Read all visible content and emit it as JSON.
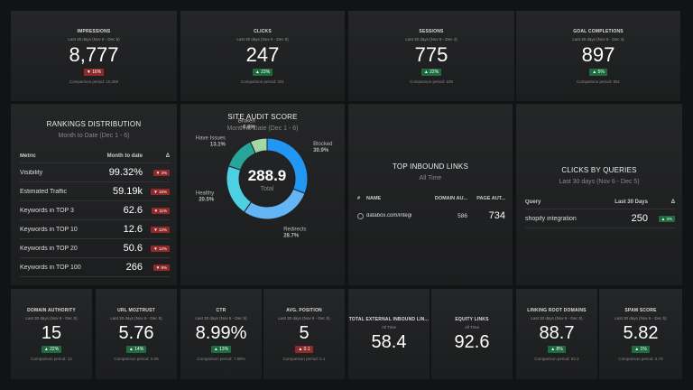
{
  "top_tiles": [
    {
      "title": "IMPRESSIONS",
      "period": "Last 30 days (Nov 6 - Dec 5)",
      "value": "8,777",
      "change": {
        "text": "▼ 16%",
        "color": "#8e2a2a"
      },
      "comparison": "Comparison period: 10,465"
    },
    {
      "title": "CLICKS",
      "period": "Last 30 days (Nov 6 - Dec 5)",
      "value": "247",
      "change": {
        "text": "▲ 23%",
        "color": "#1e6b3f"
      },
      "comparison": "Comparison period: 201"
    },
    {
      "title": "SESSIONS",
      "period": "Last 30 days (Nov 6 - Dec 4)",
      "value": "775",
      "change": {
        "text": "▲ 22%",
        "color": "#1e6b3f"
      },
      "comparison": "Comparison period: 635"
    },
    {
      "title": "GOAL COMPLETIONS",
      "period": "Last 30 days (Nov 6 - Dec 4)",
      "value": "897",
      "change": {
        "text": "▲ 5%",
        "color": "#1e6b3f"
      },
      "comparison": "Comparison period: 851"
    }
  ],
  "rankings": {
    "title": "RANKINGS DISTRIBUTION",
    "period": "Month to Date (Dec 1 - 6)",
    "columns": [
      "Metric",
      "Month to date",
      "Δ"
    ],
    "rows": [
      {
        "name": "Visibility",
        "value": "99.32%",
        "change": {
          "text": "▼ 3%",
          "color": "#8e2a2a"
        }
      },
      {
        "name": "Estimated Traffic",
        "value": "59.19k",
        "change": {
          "text": "▼ 16%",
          "color": "#8e2a2a"
        }
      },
      {
        "name": "Keywords in TOP 3",
        "value": "62.6",
        "change": {
          "text": "▼ 11%",
          "color": "#8e2a2a"
        }
      },
      {
        "name": "Keywords in TOP 10",
        "value": "12.6",
        "change": {
          "text": "▼ 12%",
          "color": "#8e2a2a"
        }
      },
      {
        "name": "Keywords in TOP 20",
        "value": "50.6",
        "change": {
          "text": "▼ 12%",
          "color": "#8e2a2a"
        }
      },
      {
        "name": "Keywords in TOP 100",
        "value": "266",
        "change": {
          "text": "▼ 9%",
          "color": "#8e2a2a"
        }
      }
    ]
  },
  "site_audit": {
    "title": "SITE AUDIT SCORE",
    "period": "Month to Date (Dec 1 - 6)",
    "total": "288.9",
    "total_label": "Total",
    "segments": [
      {
        "name": "Blocked",
        "value": 30.9,
        "label": "30.9%",
        "color": "#2196f3"
      },
      {
        "name": "Redirects",
        "value": 28.7,
        "label": "28.7%",
        "color": "#64b5f6"
      },
      {
        "name": "Healthy",
        "value": 20.5,
        "label": "20.5%",
        "color": "#4dd0e1"
      },
      {
        "name": "Have Issues",
        "value": 13.1,
        "label": "13.1%",
        "color": "#26a69a"
      },
      {
        "name": "Broken",
        "value": 6.8,
        "label": "6.8%",
        "color": "#a5d6a7"
      }
    ]
  },
  "inbound_links": {
    "title": "TOP INBOUND LINKS",
    "period": "All Time",
    "columns": [
      "#",
      "NAME",
      "DOMAIN AU...",
      "PAGE AUT..."
    ],
    "rows": [
      {
        "name": "databox.com/integrations",
        "domain_authority": 586,
        "page_authority": 734
      }
    ]
  },
  "clicks_by_queries": {
    "title": "CLICKS BY QUERIES",
    "period": "Last 30 days (Nov 6 - Dec 5)",
    "columns": [
      "Query",
      "Last 30 Days",
      "Δ"
    ],
    "rows": [
      {
        "name": "shopify integration",
        "value": "250",
        "change": {
          "text": "▲ 3%",
          "color": "#1e6b3f"
        }
      }
    ]
  },
  "bottom_tiles": [
    {
      "title": "DOMAIN AUTHORITY",
      "period": "Last 30 days (Nov 6 - Dec 5)",
      "value": "15",
      "change": {
        "text": "▲ 22%",
        "color": "#1e6b3f"
      },
      "comparison": "Comparison period: 12"
    },
    {
      "title": "URL MOZTRUST",
      "period": "Last 30 days (Nov 6 - Dec 5)",
      "value": "5.76",
      "change": {
        "text": "▲ 14%",
        "color": "#1e6b3f"
      },
      "comparison": "Comparison period: 5.08"
    },
    {
      "title": "CTR",
      "period": "Last 30 days (Nov 6 - Dec 5)",
      "value": "8.99%",
      "change": {
        "text": "▲ 13%",
        "color": "#1e6b3f"
      },
      "comparison": "Comparison period: 7.98%"
    },
    {
      "title": "AVG. POSITION",
      "period": "Last 30 days (Nov 6 - Dec 5)",
      "value": "5",
      "change": {
        "text": "▲ 0.1",
        "color": "#8e2a2a"
      },
      "comparison": "Comparison period: 5.1"
    },
    {
      "title": "TOTAL EXTERNAL INBOUND LIN...",
      "period": "All Time",
      "value": "58.4"
    },
    {
      "title": "EQUITY LINKS",
      "period": "All Time",
      "value": "92.6"
    },
    {
      "title": "LINKING ROOT DOMAINS",
      "period": "Last 30 days (Nov 6 - Dec 5)",
      "value": "88.7",
      "change": {
        "text": "▲ 8%",
        "color": "#1e6b3f"
      },
      "comparison": "Comparison period: 82.2"
    },
    {
      "title": "SPAM SCORE",
      "period": "Last 30 days (Nov 6 - Dec 5)",
      "value": "5.82",
      "change": {
        "text": "▲ 1%",
        "color": "#1e6b3f"
      },
      "comparison": "Comparison period: 5.79"
    }
  ]
}
